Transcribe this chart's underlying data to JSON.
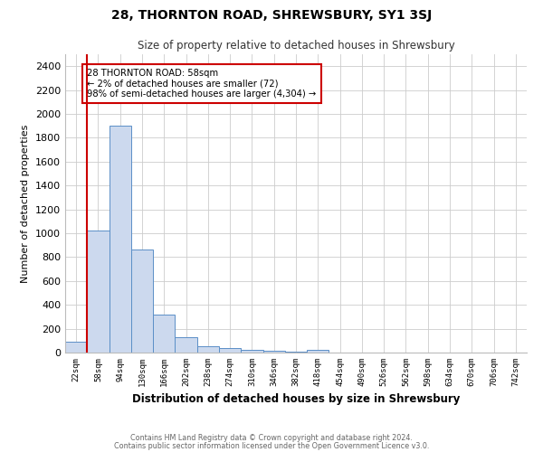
{
  "title": "28, THORNTON ROAD, SHREWSBURY, SY1 3SJ",
  "subtitle": "Size of property relative to detached houses in Shrewsbury",
  "xlabel": "Distribution of detached houses by size in Shrewsbury",
  "ylabel": "Number of detached properties",
  "footnote1": "Contains HM Land Registry data © Crown copyright and database right 2024.",
  "footnote2": "Contains public sector information licensed under the Open Government Licence v3.0.",
  "annotation_title": "28 THORNTON ROAD: 58sqm",
  "annotation_line2": "← 2% of detached houses are smaller (72)",
  "annotation_line3": "98% of semi-detached houses are larger (4,304) →",
  "bar_labels": [
    "22sqm",
    "58sqm",
    "94sqm",
    "130sqm",
    "166sqm",
    "202sqm",
    "238sqm",
    "274sqm",
    "310sqm",
    "346sqm",
    "382sqm",
    "418sqm",
    "454sqm",
    "490sqm",
    "526sqm",
    "562sqm",
    "598sqm",
    "634sqm",
    "670sqm",
    "706sqm",
    "742sqm"
  ],
  "bar_values": [
    90,
    1020,
    1900,
    860,
    320,
    130,
    55,
    35,
    25,
    15,
    10,
    20,
    0,
    0,
    0,
    0,
    0,
    0,
    0,
    0,
    0
  ],
  "bar_color": "#ccd9ee",
  "bar_edge_color": "#5b8fc7",
  "red_line_x": 0.5,
  "red_line_color": "#cc0000",
  "annotation_box_color": "#cc0000",
  "ylim": [
    0,
    2500
  ],
  "yticks": [
    0,
    200,
    400,
    600,
    800,
    1000,
    1200,
    1400,
    1600,
    1800,
    2000,
    2200,
    2400
  ],
  "grid_color": "#cccccc",
  "bg_color": "#ffffff"
}
